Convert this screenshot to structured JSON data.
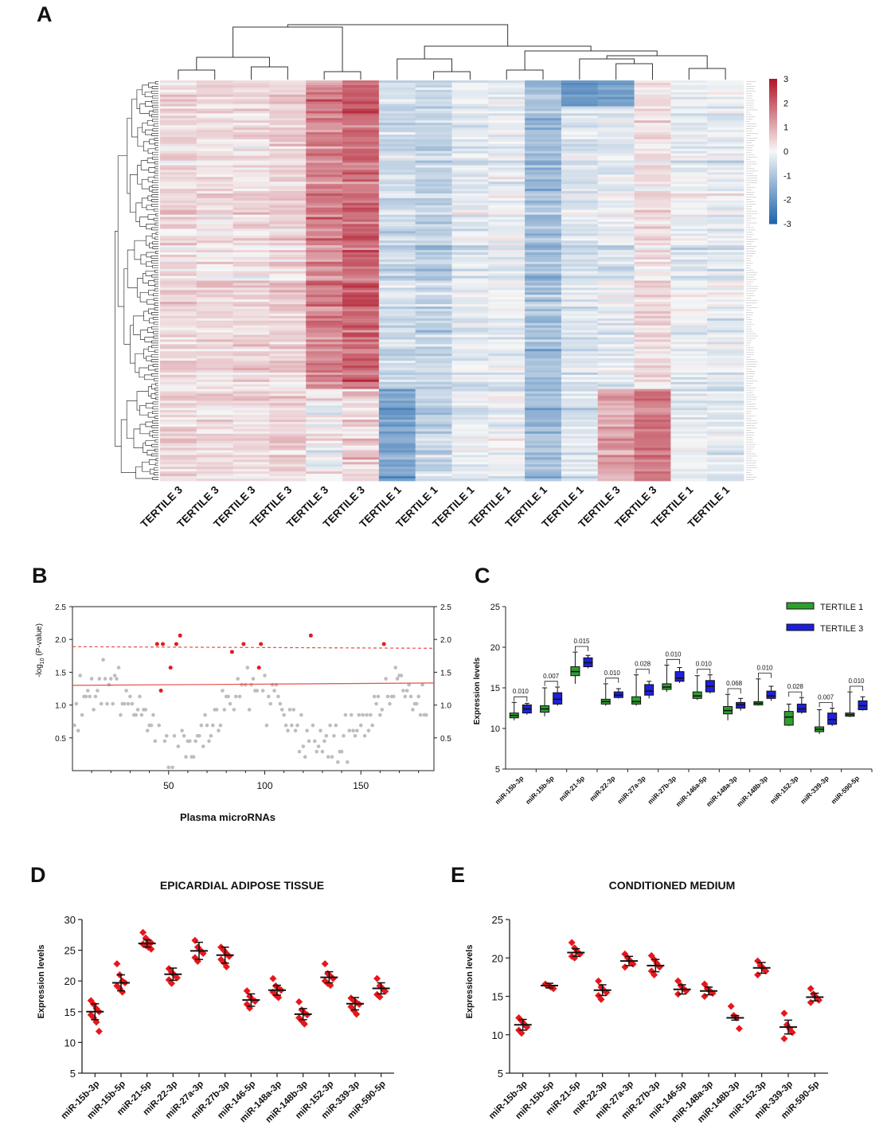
{
  "colors": {
    "heat_high": "#b2182b",
    "heat_mid": "#f7f7f7",
    "heat_low": "#2166ac",
    "grey_point": "#bdbdbd",
    "red_point": "#e41a1c",
    "threshold_line": "#e8504a",
    "tertile1_box": "#2ca02c",
    "tertile3_box": "#1f1fdd",
    "dot_red": "#e8161b",
    "axis": "#222222"
  },
  "panels": {
    "A": {
      "letter": "A"
    },
    "B": {
      "letter": "B"
    },
    "C": {
      "letter": "C"
    },
    "D": {
      "letter": "D",
      "title": "EPICARDIAL ADIPOSE TISSUE"
    },
    "E": {
      "letter": "E",
      "title": "CONDITIONED MEDIUM"
    }
  },
  "chart_data": [
    {
      "id": "A",
      "type": "heatmap",
      "title": "",
      "columns": [
        "TERTILE 3",
        "TERTILE 3",
        "TERTILE 3",
        "TERTILE 3",
        "TERTILE 3",
        "TERTILE 3",
        "TERTILE 1",
        "TERTILE 1",
        "TERTILE 1",
        "TERTILE 1",
        "TERTILE 1",
        "TERTILE 1",
        "TERTILE 3",
        "TERTILE 3",
        "TERTILE 1",
        "TERTILE 1"
      ],
      "column_profile": [
        0.4,
        0.3,
        0.35,
        0.5,
        1.5,
        1.9,
        -0.6,
        -0.8,
        -0.3,
        -0.2,
        -1.2,
        -0.4,
        -0.3,
        0.3,
        -0.2,
        -0.2
      ],
      "n_rows": 170,
      "colorbar": {
        "ticks": [
          3,
          2,
          1,
          0,
          -1,
          -2,
          -3
        ],
        "range": [
          -3,
          3
        ]
      }
    },
    {
      "id": "B",
      "type": "scatter",
      "xlabel": "Plasma microRNAs",
      "ylabel": "-log10 (P-value)",
      "ylabel_main": "-log",
      "ylabel_sub": "10",
      "ylabel_rest": " (P-value)",
      "x_ticks": [
        50,
        100,
        150
      ],
      "y_ticks": [
        "2.5",
        "2.0",
        "1.5",
        "1.0",
        "0.5"
      ],
      "y_ticks_right": [
        "2.5",
        "2.0",
        "1.5",
        "1.0",
        "0.5"
      ],
      "xlim": [
        0,
        188
      ],
      "ylim": [
        0,
        2.5
      ],
      "solid_threshold": 1.3,
      "dashed_threshold": 1.89,
      "n_points": 184,
      "significant_points": [
        {
          "x": 44,
          "y": 1.93
        },
        {
          "x": 47,
          "y": 1.93
        },
        {
          "x": 51,
          "y": 1.57
        },
        {
          "x": 54,
          "y": 1.93
        },
        {
          "x": 56,
          "y": 2.06
        },
        {
          "x": 46,
          "y": 1.22
        },
        {
          "x": 83,
          "y": 1.81
        },
        {
          "x": 89,
          "y": 1.93
        },
        {
          "x": 98,
          "y": 1.93
        },
        {
          "x": 97,
          "y": 1.57
        },
        {
          "x": 124,
          "y": 2.06
        },
        {
          "x": 162,
          "y": 1.93
        }
      ]
    },
    {
      "id": "C",
      "type": "box",
      "ylabel": "Expression levels",
      "ylim": [
        5,
        25
      ],
      "y_ticks": [
        "25",
        "20",
        "15",
        "10",
        "5"
      ],
      "categories": [
        "miR-15b-3p",
        "miR-15b-5p",
        "miR-21-5p",
        "miR-22-3p",
        "miR-27a-3p",
        "miR-27b-3p",
        "miR-146a-5p",
        "miR-148a-3p",
        "miR-148b-3p",
        "miR-152-3p",
        "miR-339-3p",
        "miR-590-5p"
      ],
      "p_values": [
        "0.010",
        "0.007",
        "0.015",
        "0.010",
        "0.028",
        "0.010",
        "0.010",
        "0.068",
        "0.010",
        "0.028",
        "0.007",
        "0.010"
      ],
      "legend": [
        "TERTILE 1",
        "TERTILE 3"
      ],
      "series": [
        {
          "name": "TERTILE 1",
          "boxes": [
            {
              "min": 11.0,
              "q1": 11.3,
              "median": 11.6,
              "q3": 11.9,
              "max": 13.2
            },
            {
              "min": 11.5,
              "q1": 12.0,
              "median": 12.4,
              "q3": 12.8,
              "max": 15.0
            },
            {
              "min": 15.5,
              "q1": 16.5,
              "median": 17.0,
              "q3": 17.6,
              "max": 19.4
            },
            {
              "min": 12.8,
              "q1": 13.0,
              "median": 13.3,
              "q3": 13.6,
              "max": 15.5
            },
            {
              "min": 12.8,
              "q1": 13.0,
              "median": 13.3,
              "q3": 13.9,
              "max": 16.6
            },
            {
              "min": 14.5,
              "q1": 14.8,
              "median": 15.1,
              "q3": 15.5,
              "max": 17.8
            },
            {
              "min": 13.5,
              "q1": 13.7,
              "median": 14.0,
              "q3": 14.5,
              "max": 16.5
            },
            {
              "min": 11.0,
              "q1": 11.8,
              "median": 12.2,
              "q3": 12.7,
              "max": 14.2
            },
            {
              "min": 12.8,
              "q1": 12.9,
              "median": 13.1,
              "q3": 13.3,
              "max": 16.1
            },
            {
              "min": 10.3,
              "q1": 10.4,
              "median": 11.4,
              "q3": 12.1,
              "max": 13.0
            },
            {
              "min": 9.3,
              "q1": 9.6,
              "median": 9.9,
              "q3": 10.2,
              "max": 12.3
            },
            {
              "min": 11.4,
              "q1": 11.5,
              "median": 11.7,
              "q3": 11.9,
              "max": 14.5
            }
          ]
        },
        {
          "name": "TERTILE 3",
          "boxes": [
            {
              "min": 11.7,
              "q1": 11.9,
              "median": 12.4,
              "q3": 12.9,
              "max": 13.1
            },
            {
              "min": 12.8,
              "q1": 13.0,
              "median": 13.6,
              "q3": 14.4,
              "max": 15.1
            },
            {
              "min": 17.4,
              "q1": 17.6,
              "median": 18.1,
              "q3": 18.7,
              "max": 19.0
            },
            {
              "min": 13.7,
              "q1": 13.8,
              "median": 14.1,
              "q3": 14.5,
              "max": 14.9
            },
            {
              "min": 13.7,
              "q1": 14.1,
              "median": 14.6,
              "q3": 15.4,
              "max": 15.8
            },
            {
              "min": 15.6,
              "q1": 15.8,
              "median": 16.2,
              "q3": 17.0,
              "max": 17.5
            },
            {
              "min": 14.3,
              "q1": 14.5,
              "median": 15.2,
              "q3": 15.9,
              "max": 16.6
            },
            {
              "min": 12.2,
              "q1": 12.5,
              "median": 12.9,
              "q3": 13.2,
              "max": 13.7
            },
            {
              "min": 13.4,
              "q1": 13.7,
              "median": 14.0,
              "q3": 14.6,
              "max": 15.2
            },
            {
              "min": 11.8,
              "q1": 12.0,
              "median": 12.4,
              "q3": 13.0,
              "max": 13.8
            },
            {
              "min": 10.3,
              "q1": 10.5,
              "median": 11.1,
              "q3": 11.9,
              "max": 12.5
            },
            {
              "min": 12.2,
              "q1": 12.3,
              "median": 12.8,
              "q3": 13.4,
              "max": 13.9
            }
          ]
        }
      ]
    },
    {
      "id": "D",
      "type": "scatter",
      "title": "EPICARDIAL ADIPOSE TISSUE",
      "ylabel": "Expression levels",
      "ylim": [
        5,
        30
      ],
      "y_ticks": [
        "30",
        "25",
        "20",
        "15",
        "10",
        "5"
      ],
      "categories": [
        "miR-15b-3p",
        "miR-15b-5p",
        "miR-21-5p",
        "miR-22-3p",
        "miR-27a-3p",
        "miR-27b-3p",
        "miR-146-5p",
        "miR-148a-3p",
        "miR-148b-3p",
        "miR-152-3p",
        "miR-339-3p",
        "miR-590-5p"
      ],
      "mean": [
        15.0,
        19.7,
        26.1,
        21.1,
        24.9,
        24.2,
        16.9,
        18.5,
        14.6,
        20.6,
        16.3,
        18.8
      ],
      "err": [
        1.3,
        1.3,
        0.6,
        1.0,
        1.4,
        1.3,
        1.0,
        0.8,
        0.9,
        0.9,
        1.0,
        0.9
      ],
      "points": [
        [
          16.8,
          16.2,
          15.5,
          15.0,
          14.5,
          14.0,
          13.3,
          11.8
        ],
        [
          22.8,
          21.0,
          20.0,
          19.7,
          19.2,
          18.8,
          18.2
        ],
        [
          27.9,
          27.0,
          26.5,
          26.2,
          26.0,
          25.8,
          25.5,
          25.2
        ],
        [
          22.0,
          21.4,
          21.0,
          20.5,
          20.2,
          19.6
        ],
        [
          26.6,
          25.5,
          25.0,
          24.5,
          23.8,
          23.2
        ],
        [
          25.5,
          25.0,
          24.5,
          24.0,
          23.5,
          23.0,
          22.3
        ],
        [
          18.4,
          17.5,
          17.0,
          16.7,
          16.2,
          15.6
        ],
        [
          20.4,
          19.2,
          18.8,
          18.5,
          18.2,
          17.7,
          17.3
        ],
        [
          16.6,
          15.3,
          14.8,
          14.5,
          14.0,
          13.5,
          13.0
        ],
        [
          22.8,
          21.2,
          20.8,
          20.4,
          20.0,
          19.6,
          19.3
        ],
        [
          17.2,
          16.8,
          16.5,
          16.2,
          15.8,
          15.2,
          14.6
        ],
        [
          20.4,
          19.2,
          18.8,
          18.3,
          17.8,
          17.4
        ]
      ]
    },
    {
      "id": "E",
      "type": "scatter",
      "title": "CONDITIONED MEDIUM",
      "ylabel": "Expression levels",
      "ylim": [
        5,
        25
      ],
      "y_ticks": [
        "25",
        "20",
        "15",
        "10",
        "5"
      ],
      "categories": [
        "miR-15b-3p",
        "miR-15b-5p",
        "miR-21-5p",
        "miR-22-3p",
        "miR-27a-3p",
        "miR-27b-3p",
        "miR-146-5p",
        "miR-148a-3p",
        "miR-148b-3p",
        "miR-152-3p",
        "miR-339-3p",
        "miR-590-5p"
      ],
      "mean": [
        11.3,
        16.4,
        20.7,
        15.8,
        19.6,
        19.0,
        15.9,
        15.7,
        12.2,
        18.7,
        11.0,
        14.9
      ],
      "err": [
        0.7,
        0.3,
        0.5,
        0.7,
        0.6,
        0.8,
        0.6,
        0.5,
        0.3,
        0.7,
        0.9,
        0.5
      ],
      "points": [
        [
          12.2,
          11.8,
          11.4,
          11.0,
          10.6,
          10.2
        ],
        [
          16.6,
          16.4,
          16.2,
          16.0
        ],
        [
          22.0,
          21.3,
          20.8,
          20.5,
          20.2,
          20.0
        ],
        [
          17.0,
          16.2,
          15.8,
          15.5,
          15.1,
          14.6
        ],
        [
          20.5,
          20.0,
          19.6,
          19.2,
          18.8
        ],
        [
          20.3,
          19.8,
          19.3,
          18.8,
          18.3,
          17.8
        ],
        [
          17.0,
          16.4,
          16.0,
          15.7,
          15.3
        ],
        [
          16.6,
          16.0,
          15.7,
          15.4,
          15.0
        ],
        [
          13.7,
          12.5,
          12.2,
          10.8
        ],
        [
          19.6,
          19.0,
          18.7,
          18.3,
          17.8
        ],
        [
          12.8,
          11.3,
          10.8,
          10.3,
          9.5
        ],
        [
          16.0,
          15.3,
          14.9,
          14.5,
          14.2
        ]
      ]
    }
  ]
}
